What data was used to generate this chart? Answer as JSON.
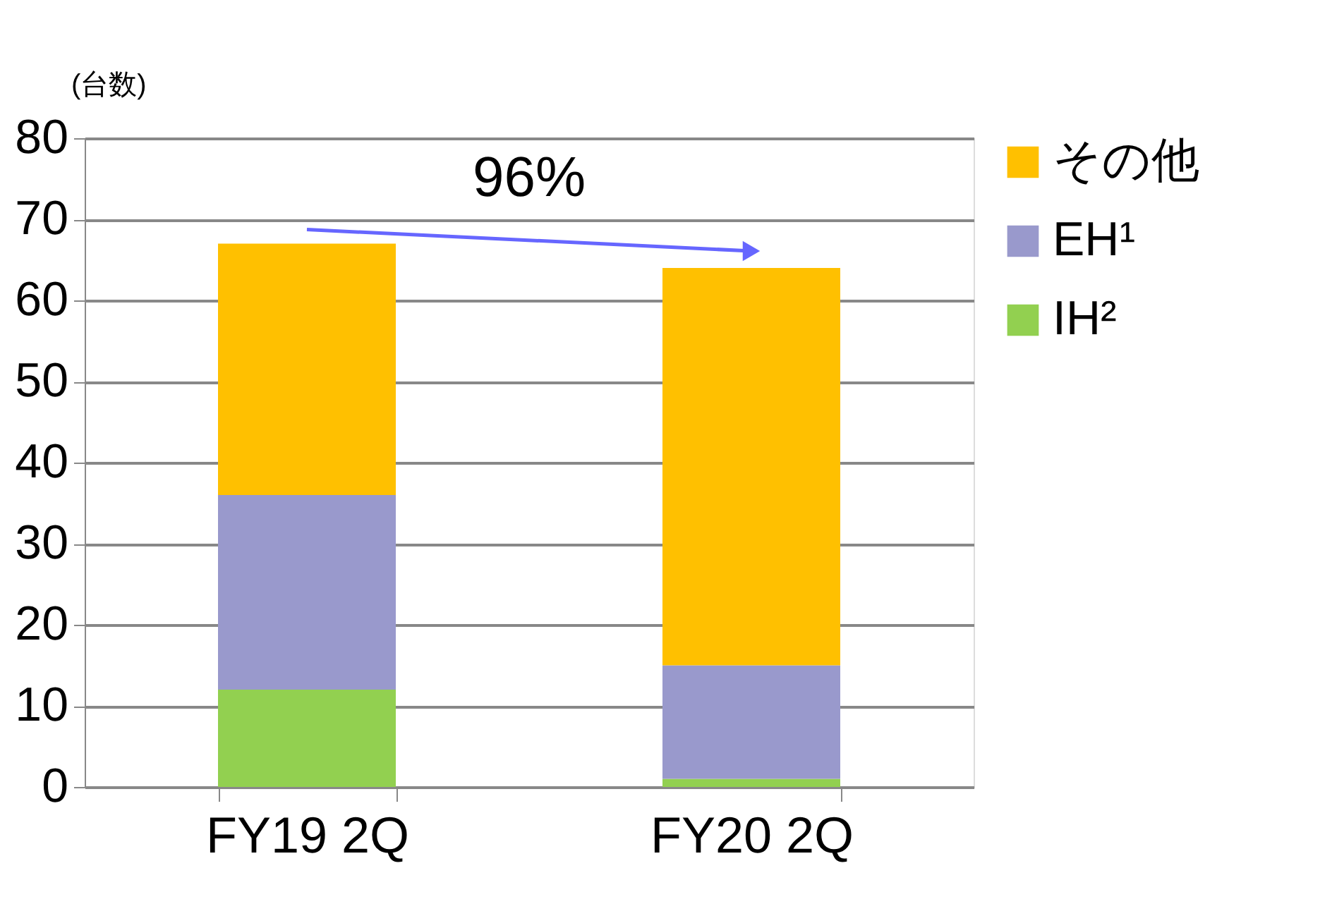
{
  "chart_data": {
    "type": "bar",
    "stacked": true,
    "ylabel": "(台数)",
    "categories": [
      "FY19 2Q",
      "FY20 2Q"
    ],
    "series": [
      {
        "name": "IH²",
        "color": "#92d050",
        "values": [
          12,
          1
        ]
      },
      {
        "name": "EH¹",
        "color": "#9999cc",
        "values": [
          24,
          14
        ]
      },
      {
        "name": "その他",
        "color": "#ffc000",
        "values": [
          31,
          49
        ]
      }
    ],
    "ylim": [
      0,
      80
    ],
    "yticks": [
      0,
      10,
      20,
      30,
      40,
      50,
      60,
      70,
      80
    ],
    "grid": "y",
    "legend": "right",
    "annotations": [
      "96%"
    ]
  }
}
